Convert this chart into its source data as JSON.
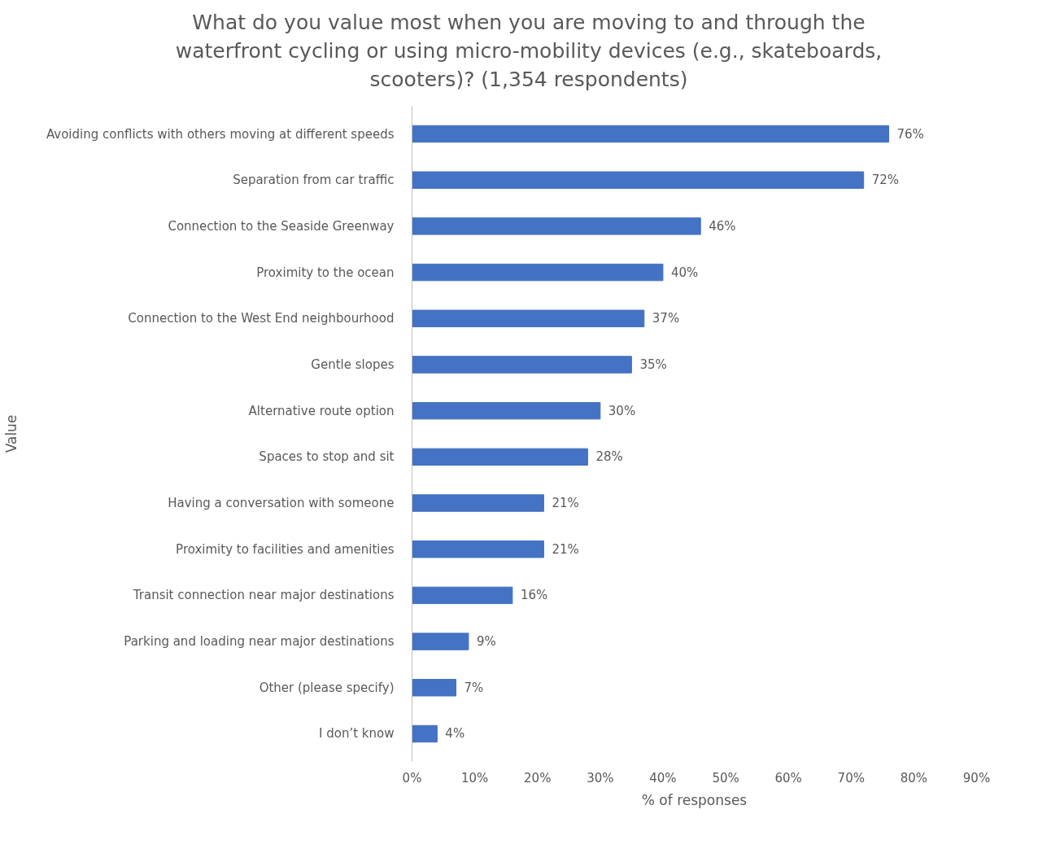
{
  "chart_data": {
    "type": "bar",
    "orientation": "horizontal",
    "title": "What do you value most when you are moving to and through the waterfront cycling or using micro-mobility devices (e.g., skateboards, scooters)? (1,354 respondents)",
    "xlabel": "% of responses",
    "ylabel": "Value",
    "categories": [
      "Avoiding conflicts with others moving at different speeds",
      "Separation from car traffic",
      "Connection to the Seaside Greenway",
      "Proximity to the ocean",
      "Connection to the West End neighbourhood",
      "Gentle slopes",
      "Alternative route option",
      "Spaces to stop and sit",
      "Having a conversation with someone",
      "Proximity to facilities and amenities",
      "Transit connection near major destinations",
      "Parking and loading near major destinations",
      "Other (please specify)",
      "I don’t know"
    ],
    "values": [
      76,
      72,
      46,
      40,
      37,
      35,
      30,
      28,
      21,
      21,
      16,
      9,
      7,
      4
    ],
    "value_labels": [
      "76%",
      "72%",
      "46%",
      "40%",
      "37%",
      "35%",
      "30%",
      "28%",
      "21%",
      "21%",
      "16%",
      "9%",
      "7%",
      "4%"
    ],
    "color": "#4472c4",
    "xlim": [
      0,
      90
    ],
    "xticks": [
      {
        "value": 0,
        "label": "0%"
      },
      {
        "value": 10,
        "label": "10%"
      },
      {
        "value": 20,
        "label": "20%"
      },
      {
        "value": 30,
        "label": "30%"
      },
      {
        "value": 40,
        "label": "40%"
      },
      {
        "value": 50,
        "label": "50%"
      },
      {
        "value": 60,
        "label": "60%"
      },
      {
        "value": 70,
        "label": "70%"
      },
      {
        "value": 80,
        "label": "80%"
      },
      {
        "value": 90,
        "label": "90%"
      }
    ],
    "grid": false
  }
}
